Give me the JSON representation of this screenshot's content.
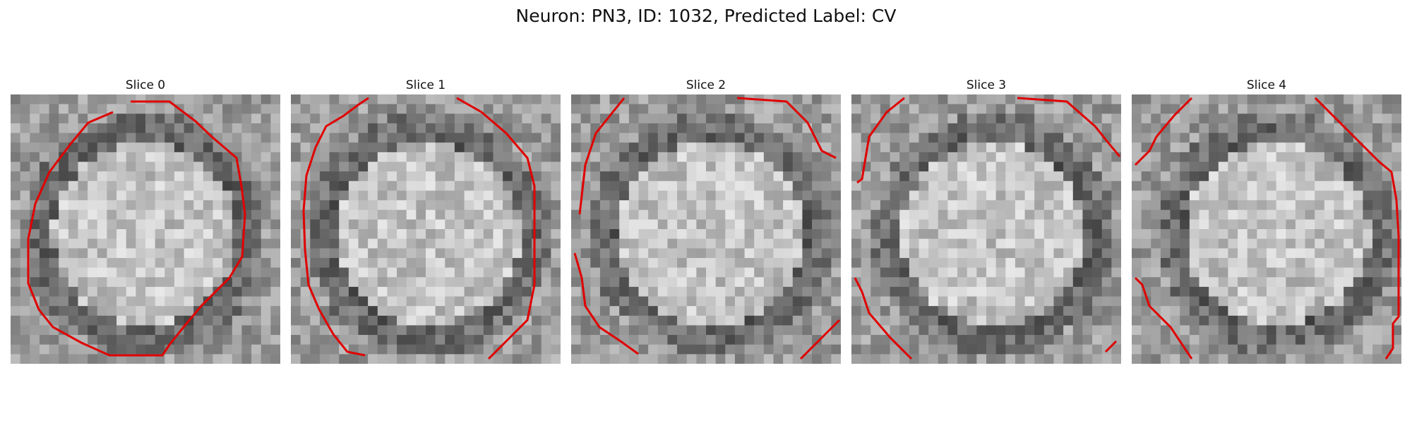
{
  "title": "Neuron: PN3, ID: 1032, Predicted Label: CV",
  "slices": [
    {
      "label": "Slice 0"
    },
    {
      "label": "Slice 1"
    },
    {
      "label": "Slice 2"
    },
    {
      "label": "Slice 3"
    },
    {
      "label": "Slice 4"
    }
  ],
  "colors": {
    "contour": "#e00000"
  }
}
